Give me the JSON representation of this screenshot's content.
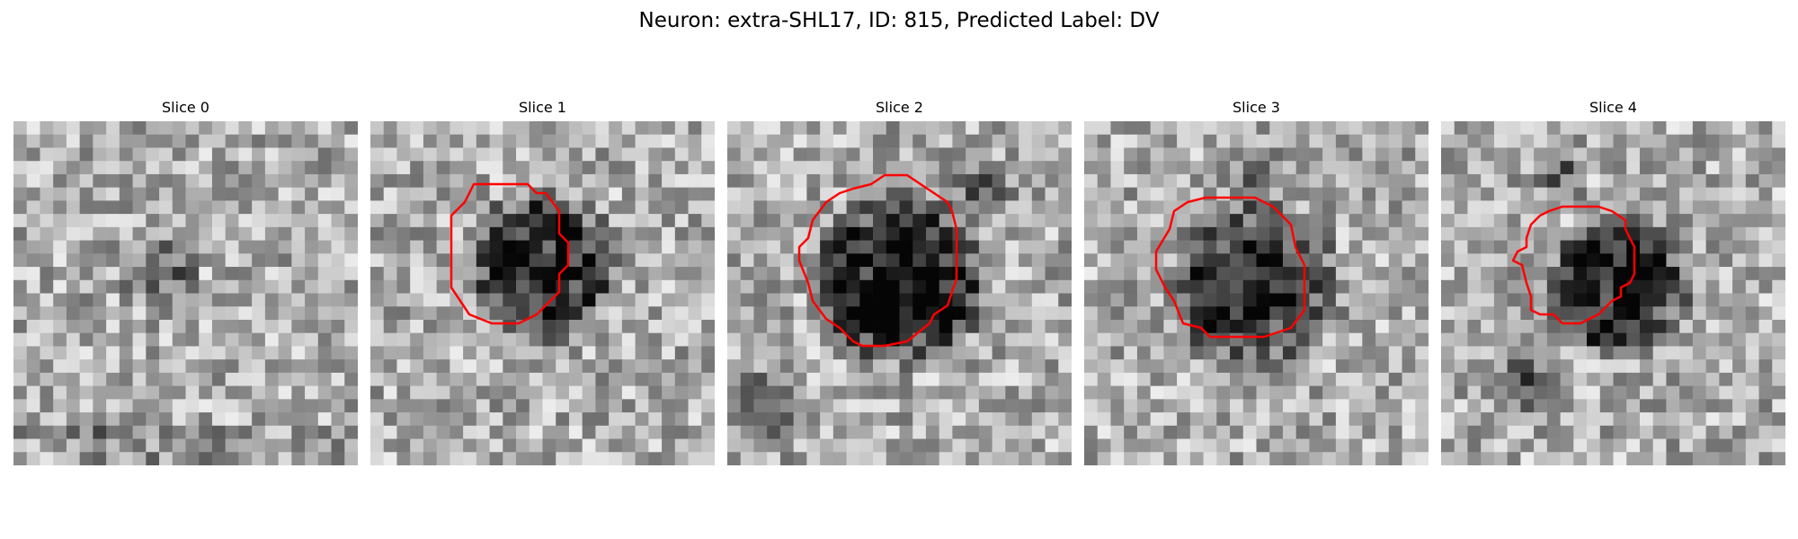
{
  "figure": {
    "title": "Neuron: extra-SHL17, ID: 815, Predicted Label: DV"
  },
  "panels": [
    {
      "title": "Slice 0",
      "has_contour": false
    },
    {
      "title": "Slice 1",
      "has_contour": true
    },
    {
      "title": "Slice 2",
      "has_contour": true
    },
    {
      "title": "Slice 3",
      "has_contour": true
    },
    {
      "title": "Slice 4",
      "has_contour": true
    }
  ],
  "image": {
    "colormap": "gray",
    "contour_color": "#ff0000",
    "grid_cells": 26
  }
}
